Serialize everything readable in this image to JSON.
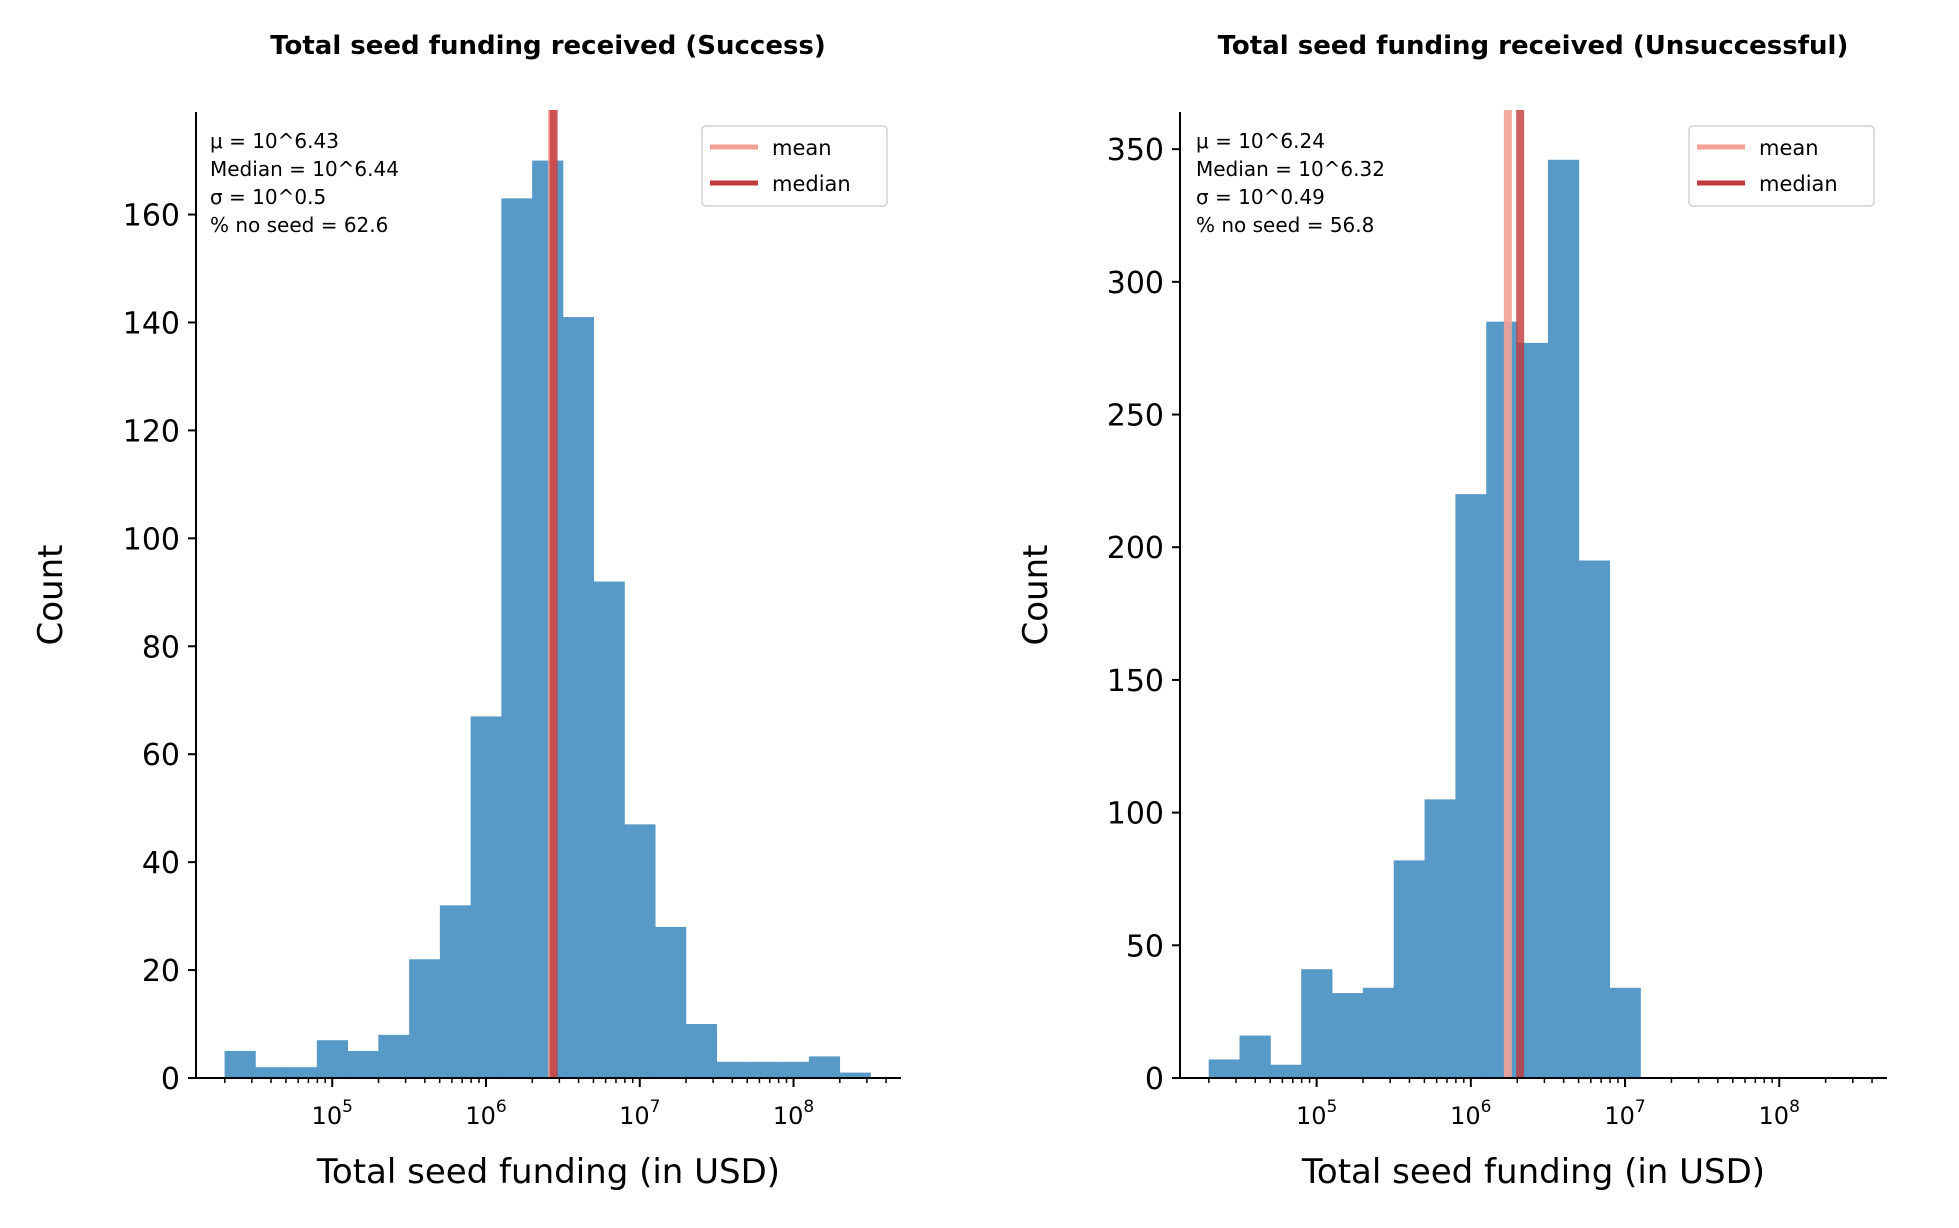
{
  "chart_data": [
    {
      "type": "histogram",
      "title": "Total seed funding received (Success)",
      "xlabel": "Total seed funding (in USD)",
      "ylabel": "Count",
      "x_scale": "log",
      "x_tick_labels": [
        "10^5",
        "10^6",
        "10^7",
        "10^8"
      ],
      "x_tick_values": [
        100000,
        1000000,
        10000000,
        100000000
      ],
      "x_range": [
        13000,
        500000000
      ],
      "y_ticks": [
        0,
        20,
        40,
        60,
        80,
        100,
        120,
        140,
        160
      ],
      "ylim": [
        0,
        179
      ],
      "bar_color": "#5799c7",
      "bins_log10_start": 4.3,
      "bins_log10_width": 0.2,
      "counts": [
        5,
        2,
        2,
        7,
        5,
        8,
        22,
        32,
        67,
        163,
        170,
        141,
        92,
        47,
        28,
        10,
        3,
        3,
        3,
        4,
        1
      ],
      "mean_line": {
        "label": "mean",
        "log10_value": 6.43,
        "color": "#f4a195"
      },
      "median_line": {
        "label": "median",
        "log10_value": 6.44,
        "color": "#c0393b"
      },
      "stats_text": [
        "μ = 10^6.43",
        "Median = 10^6.44",
        "σ = 10^0.5",
        " % no seed = 62.6"
      ],
      "legend": {
        "position": "top-right",
        "entries": [
          "mean",
          "median"
        ]
      },
      "grid": false
    },
    {
      "type": "histogram",
      "title": "Total seed funding received (Unsuccessful)",
      "xlabel": "Total seed funding (in USD)",
      "ylabel": "Count",
      "x_scale": "log",
      "x_tick_labels": [
        "10^5",
        "10^6",
        "10^7",
        "10^8"
      ],
      "x_tick_values": [
        100000,
        1000000,
        10000000,
        100000000
      ],
      "x_range": [
        13000,
        500000000
      ],
      "y_ticks": [
        0,
        50,
        100,
        150,
        200,
        250,
        300,
        350
      ],
      "ylim": [
        0,
        364
      ],
      "bar_color": "#5799c7",
      "bins_log10_start": 4.3,
      "bins_log10_width": 0.2,
      "counts": [
        7,
        16,
        5,
        41,
        32,
        34,
        82,
        105,
        220,
        285,
        277,
        346,
        195,
        34
      ],
      "mean_line": {
        "label": "mean",
        "log10_value": 6.24,
        "color": "#f4a195"
      },
      "median_line": {
        "label": "median",
        "log10_value": 6.32,
        "color": "#c0393b"
      },
      "stats_text": [
        "μ = 10^6.24",
        "Median = 10^6.32",
        "σ = 10^0.49",
        " % no seed = 56.8"
      ],
      "legend": {
        "position": "top-right",
        "entries": [
          "mean",
          "median"
        ]
      },
      "grid": false
    }
  ]
}
